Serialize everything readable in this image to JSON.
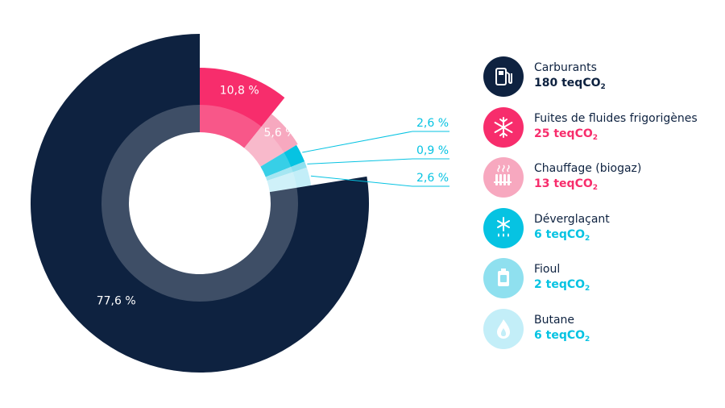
{
  "chart_data": {
    "type": "pie",
    "variant": "exploded-donut",
    "slices": [
      {
        "label": "Carburants",
        "percent_label": "77,6 %",
        "percent": 77.6,
        "value_label": "180",
        "unit": "teqCO",
        "unit_sub": "2",
        "color": "#0e2240",
        "icon": "fuel-pump-icon",
        "value_color": "#0e2240"
      },
      {
        "label": "Fuites de fluides frigorigènes",
        "percent_label": "10,8 %",
        "percent": 10.8,
        "value_label": "25",
        "unit": "teqCO",
        "unit_sub": "2",
        "color": "#f72d6c",
        "icon": "snowflake-icon",
        "value_color": "#f72d6c"
      },
      {
        "label": "Chauffage (biogaz)",
        "percent_label": "5,6 %",
        "percent": 5.6,
        "value_label": "13",
        "unit": "teqCO",
        "unit_sub": "2",
        "color": "#f7a8bf",
        "icon": "radiator-icon",
        "value_color": "#f72d6c"
      },
      {
        "label": "Déverglaçant",
        "percent_label": "2,6 %",
        "percent": 2.6,
        "value_label": "6",
        "unit": "teqCO",
        "unit_sub": "2",
        "color": "#06c3e2",
        "icon": "deicer-icon",
        "value_color": "#06c3e2"
      },
      {
        "label": "Fioul",
        "percent_label": "0,9 %",
        "percent": 0.9,
        "value_label": "2",
        "unit": "teqCO",
        "unit_sub": "2",
        "color": "#8fe0ef",
        "icon": "fuel-can-icon",
        "value_color": "#06c3e2"
      },
      {
        "label": "Butane",
        "percent_label": "2,6 %",
        "percent": 2.6,
        "value_label": "6",
        "unit": "teqCO",
        "unit_sub": "2",
        "color": "#c3eef8",
        "icon": "flame-icon",
        "value_color": "#06c3e2"
      }
    ]
  }
}
